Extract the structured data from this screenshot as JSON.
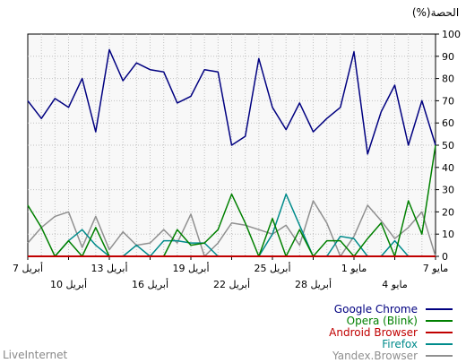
{
  "chart_data": {
    "type": "line",
    "ylabel": "(%)الحصة",
    "ylim": [
      0,
      100
    ],
    "yticks": [
      0,
      10,
      20,
      30,
      40,
      50,
      60,
      70,
      80,
      90,
      100
    ],
    "grid": true,
    "legend_position": "bottom-right",
    "x_ticks": [
      {
        "index": 0,
        "label": "7 مايو",
        "row": 1
      },
      {
        "index": 3,
        "label": "4 مايو",
        "row": 2
      },
      {
        "index": 6,
        "label": "1 مايو",
        "row": 1
      },
      {
        "index": 9,
        "label": "28 أبريل",
        "row": 2
      },
      {
        "index": 12,
        "label": "25 أبريل",
        "row": 1
      },
      {
        "index": 15,
        "label": "22 أبريل",
        "row": 2
      },
      {
        "index": 18,
        "label": "19 أبريل",
        "row": 1
      },
      {
        "index": 21,
        "label": "16 أبريل",
        "row": 2
      },
      {
        "index": 24,
        "label": "13 أبريل",
        "row": 1
      },
      {
        "index": 27,
        "label": "10 أبريل",
        "row": 2
      },
      {
        "index": 30,
        "label": "7 أبريل",
        "row": 1
      }
    ],
    "series": [
      {
        "name": "Google Chrome",
        "color": "#000080",
        "values": [
          50,
          70,
          50,
          77,
          65,
          46,
          92,
          67,
          62,
          56,
          69,
          57,
          67,
          89,
          54,
          50,
          83,
          84,
          72,
          69,
          83,
          84,
          87,
          79,
          93,
          56,
          80,
          67,
          71,
          62,
          70
        ]
      },
      {
        "name": "Opera (Blink)",
        "color": "#008000",
        "values": [
          50,
          10,
          25,
          0,
          15,
          8,
          0,
          7,
          7,
          0,
          12,
          0,
          17,
          0,
          15,
          28,
          12,
          6,
          5,
          12,
          0,
          0,
          0,
          0,
          0,
          13,
          0,
          7,
          0,
          13,
          23
        ]
      },
      {
        "name": "Android Browser",
        "color": "#c00000",
        "values": [
          0,
          0,
          0,
          0,
          0,
          0,
          0,
          0,
          0,
          0,
          0,
          0,
          0,
          0,
          0,
          0,
          0,
          0,
          0,
          0,
          0,
          0,
          0,
          0,
          0,
          0,
          0,
          0,
          0,
          0,
          0
        ]
      },
      {
        "name": "Firefox",
        "color": "#008b8b",
        "values": [
          0,
          0,
          0,
          7,
          0,
          0,
          8,
          9,
          0,
          0,
          14,
          28,
          10,
          0,
          0,
          0,
          0,
          6,
          6,
          7,
          7,
          0,
          5,
          0,
          0,
          5,
          12,
          7,
          0,
          0,
          0
        ]
      },
      {
        "name": "Yandex.Browser",
        "color": "#909090",
        "values": [
          0,
          20,
          13,
          8,
          16,
          23,
          9,
          0,
          15,
          25,
          5,
          14,
          10,
          12,
          14,
          15,
          6,
          0,
          19,
          6,
          12,
          6,
          5,
          11,
          3,
          18,
          4,
          20,
          18,
          13,
          6
        ]
      }
    ]
  },
  "footer": {
    "source": "LiveInternet"
  }
}
